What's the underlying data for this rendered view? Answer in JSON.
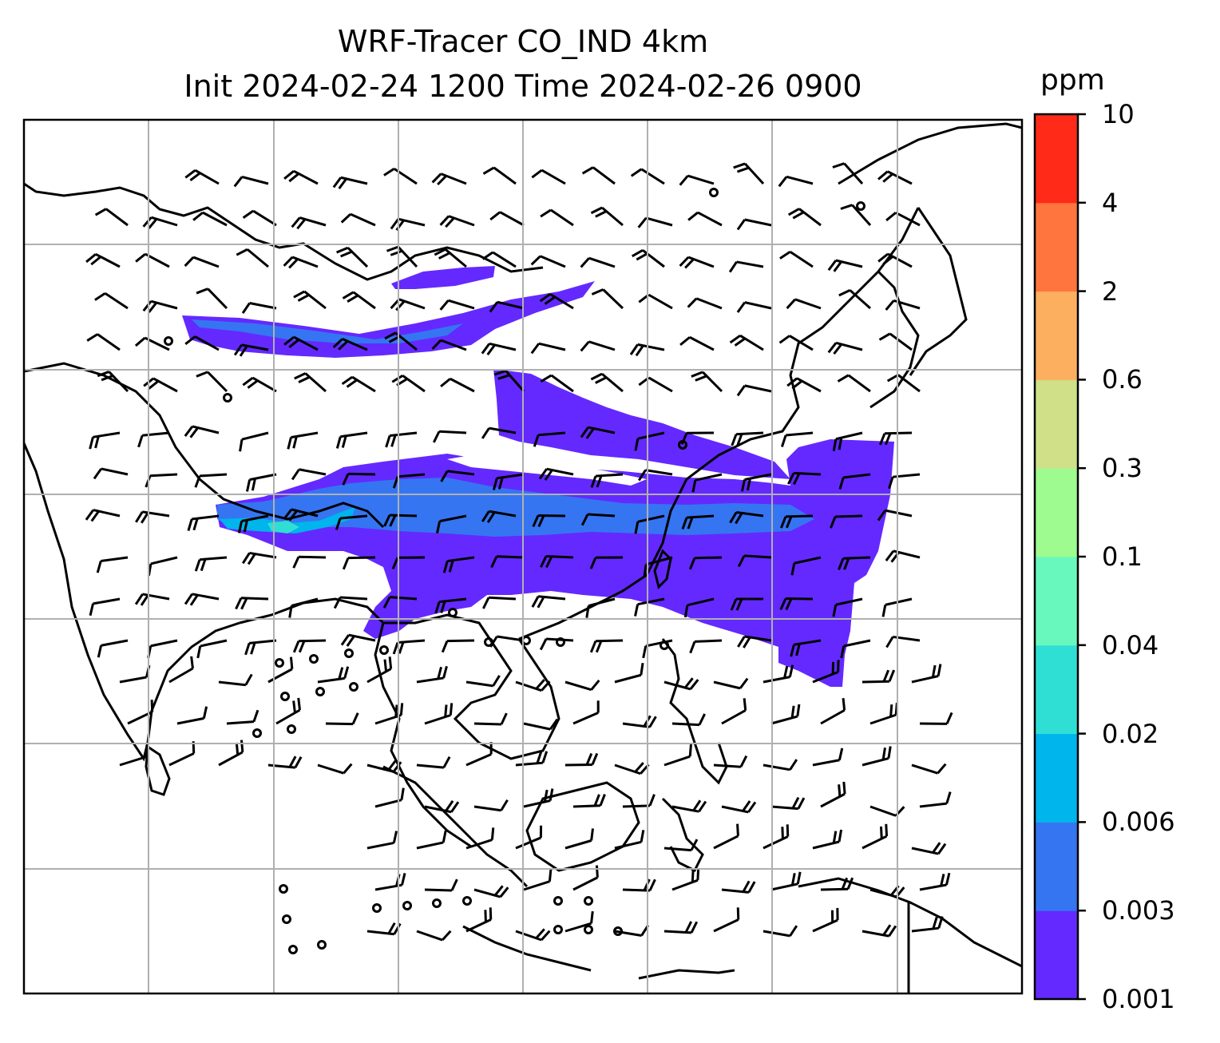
{
  "title": {
    "line1": "WRF-Tracer CO_IND 4km",
    "line2": "Init 2024-02-24 1200 Time 2024-02-26 0900"
  },
  "colorbar": {
    "unit": "ppm",
    "ticks": [
      "0.001",
      "0.003",
      "0.006",
      "0.02",
      "0.04",
      "0.1",
      "0.3",
      "0.6",
      "2",
      "4",
      "10"
    ],
    "colors": [
      "#6429ff",
      "#3575f2",
      "#00b4ec",
      "#2fdfd4",
      "#68f8bd",
      "#9efb8f",
      "#cfe089",
      "#fdaf60",
      "#ff753d",
      "#ff2a18"
    ]
  },
  "map": {
    "gridlines": "on",
    "coastlines": "on",
    "plume_colors": {
      "level1": "#6429ff",
      "level2": "#3575f2",
      "level3": "#00b4ec",
      "level4": "#2fdfd4"
    },
    "wind_barbs": "on",
    "line_color": "#000000",
    "grid_color": "#b0b0b0"
  }
}
